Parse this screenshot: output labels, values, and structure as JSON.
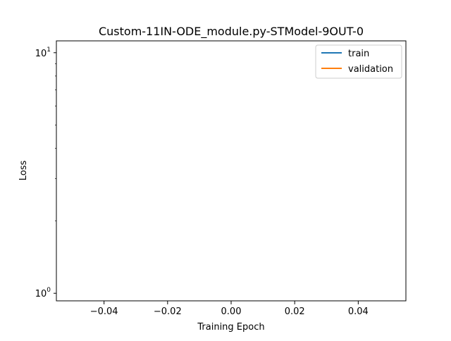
{
  "chart_data": {
    "type": "line",
    "title": "Custom-11IN-ODE_module.py-STModel-9OUT-0",
    "xlabel": "Training Epoch",
    "ylabel": "Loss",
    "x_scale": "linear",
    "y_scale": "log",
    "xlim": [
      -0.055,
      0.055
    ],
    "ylim": [
      0.93,
      11.2
    ],
    "x_ticks": [
      -0.04,
      -0.02,
      0.0,
      0.02,
      0.04
    ],
    "x_tick_labels": [
      "−0.04",
      "−0.02",
      "0.00",
      "0.02",
      "0.04"
    ],
    "y_ticks": [
      1,
      10
    ],
    "y_tick_labels": [
      {
        "base": "10",
        "exp": "0"
      },
      {
        "base": "10",
        "exp": "1"
      }
    ],
    "y_minor_ticks": [
      2,
      3,
      4,
      5,
      6,
      7,
      8,
      9
    ],
    "grid": false,
    "legend_position": "top-right",
    "series": [
      {
        "name": "train",
        "color": "#1f77b4",
        "x": [],
        "y": []
      },
      {
        "name": "validation",
        "color": "#ff7f0e",
        "x": [],
        "y": []
      }
    ]
  }
}
